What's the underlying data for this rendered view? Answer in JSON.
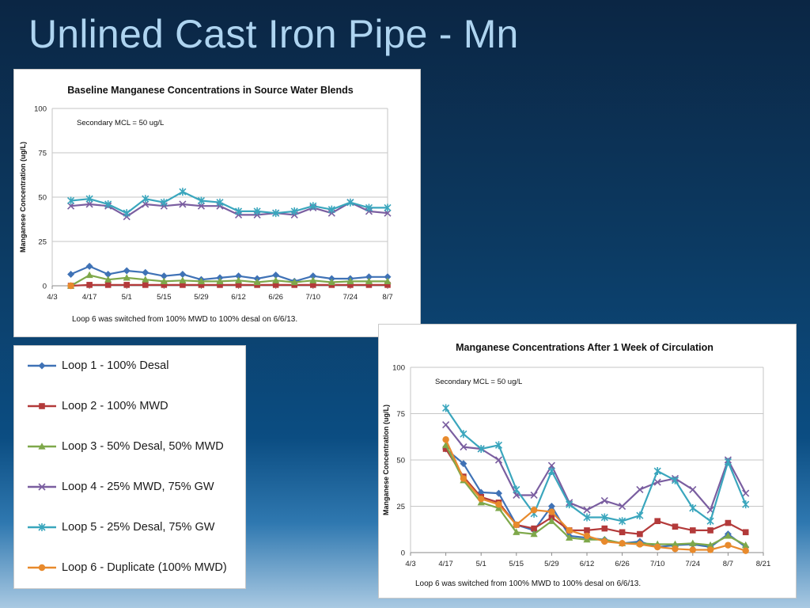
{
  "slide": {
    "title": "Unlined Cast Iron Pipe - Mn"
  },
  "legend": [
    {
      "label": "Loop 1 - 100% Desal",
      "color": "#3f72b6",
      "marker": "diamond"
    },
    {
      "label": "Loop 2 - 100% MWD",
      "color": "#b33a3a",
      "marker": "square"
    },
    {
      "label": "Loop 3 - 50% Desal, 50% MWD",
      "color": "#7ea84a",
      "marker": "triangle"
    },
    {
      "label": "Loop 4 - 25% MWD, 75% GW",
      "color": "#7a5ea0",
      "marker": "x"
    },
    {
      "label": "Loop 5 - 25% Desal, 75% GW",
      "color": "#3aa6bd",
      "marker": "star"
    },
    {
      "label": "Loop 6 - Duplicate (100% MWD)",
      "color": "#e88a2c",
      "marker": "circle"
    }
  ],
  "chart_data": [
    {
      "type": "line",
      "title": "Baseline Manganese Concentrations in Source Water Blends",
      "ylabel": "Manganese Concentration (ug/L)",
      "xlabel": "",
      "ylim": [
        0,
        100
      ],
      "yticks": [
        "0",
        "25",
        "50",
        "75",
        "100"
      ],
      "xlim": [
        "2013-04-03",
        "2013-08-07"
      ],
      "xticks": [
        "4/3",
        "4/17",
        "5/1",
        "5/15",
        "5/29",
        "6/12",
        "6/26",
        "7/10",
        "7/24",
        "8/7"
      ],
      "grid": true,
      "annotation": "Secondary MCL = 50 ug/L",
      "footnote": "Loop 6 was switched from 100% MWD to 100% desal on 6/6/13.",
      "x": [
        "2013-04-10",
        "2013-04-17",
        "2013-04-24",
        "2013-05-01",
        "2013-05-08",
        "2013-05-15",
        "2013-05-22",
        "2013-05-29",
        "2013-06-05",
        "2013-06-12",
        "2013-06-19",
        "2013-06-26",
        "2013-07-03",
        "2013-07-10",
        "2013-07-17",
        "2013-07-24",
        "2013-07-31",
        "2013-08-07"
      ],
      "series": [
        {
          "name": "Loop 1 - 100% Desal",
          "color": "#3f72b6",
          "marker": "diamond",
          "values": [
            6.5,
            11,
            6.5,
            8.5,
            7.5,
            5.5,
            6.5,
            3.5,
            4.5,
            5.5,
            4,
            6,
            2.5,
            5.5,
            4,
            4,
            5,
            5
          ]
        },
        {
          "name": "Loop 2 - 100% MWD",
          "color": "#b33a3a",
          "marker": "square",
          "values": [
            0,
            0.5,
            0.5,
            0.5,
            0.5,
            0.5,
            0.5,
            0.5,
            0.5,
            0.5,
            0.5,
            0.5,
            0.5,
            0.5,
            0.5,
            0.5,
            0.5,
            0.5
          ]
        },
        {
          "name": "Loop 3 - 50% Desal, 50% MWD",
          "color": "#7ea84a",
          "marker": "triangle",
          "values": [
            0,
            6,
            3.5,
            4.5,
            3.5,
            2.5,
            3,
            2.5,
            2.5,
            3,
            2,
            3,
            2,
            3,
            2,
            2.5,
            2.5,
            2.5
          ]
        },
        {
          "name": "Loop 4 - 25% MWD, 75% GW",
          "color": "#7a5ea0",
          "marker": "x",
          "values": [
            45,
            46,
            45,
            39,
            46,
            45,
            46,
            45,
            45,
            40,
            40,
            41,
            40,
            44,
            41,
            47,
            42,
            41
          ]
        },
        {
          "name": "Loop 5 - 25% Desal, 75% GW",
          "color": "#3aa6bd",
          "marker": "star",
          "values": [
            48,
            49,
            46,
            41,
            49,
            47,
            53,
            48,
            47,
            42,
            42,
            41,
            42,
            45,
            43,
            47,
            44,
            44
          ]
        },
        {
          "name": "Loop 6 - Duplicate (100% MWD)",
          "color": "#e88a2c",
          "marker": "circle",
          "values": [
            0,
            null,
            null,
            null,
            null,
            null,
            null,
            null,
            null,
            null,
            null,
            null,
            null,
            null,
            null,
            null,
            null,
            null
          ]
        }
      ]
    },
    {
      "type": "line",
      "title": "Manganese Concentrations After 1 Week of Circulation",
      "ylabel": "Manganese Concentration (ug/L)",
      "xlabel": "",
      "ylim": [
        0,
        100
      ],
      "yticks": [
        "0",
        "25",
        "50",
        "75",
        "100"
      ],
      "xlim": [
        "2013-04-03",
        "2013-08-21"
      ],
      "xticks": [
        "4/3",
        "4/17",
        "5/1",
        "5/15",
        "5/29",
        "6/12",
        "6/26",
        "7/10",
        "7/24",
        "8/7",
        "8/21"
      ],
      "grid": true,
      "annotation": "Secondary MCL = 50 ug/L",
      "footnote": "Loop 6 was switched from 100% MWD to 100% desal on 6/6/13.",
      "x": [
        "2013-04-17",
        "2013-04-24",
        "2013-05-01",
        "2013-05-08",
        "2013-05-15",
        "2013-05-22",
        "2013-05-29",
        "2013-06-05",
        "2013-06-12",
        "2013-06-19",
        "2013-06-26",
        "2013-07-03",
        "2013-07-10",
        "2013-07-17",
        "2013-07-24",
        "2013-07-31",
        "2013-08-07",
        "2013-08-14"
      ],
      "series": [
        {
          "name": "Loop 1 - 100% Desal",
          "color": "#3f72b6",
          "marker": "diamond",
          "values": [
            56,
            48,
            32.5,
            32,
            15,
            12,
            25,
            9,
            8,
            7,
            5,
            6,
            3,
            4,
            4.5,
            3,
            10,
            3
          ]
        },
        {
          "name": "Loop 2 - 100% MWD",
          "color": "#b33a3a",
          "marker": "square",
          "values": [
            56,
            41,
            30,
            27,
            15,
            13,
            19,
            12,
            12,
            13,
            11,
            10,
            17,
            14,
            12,
            12,
            16,
            11
          ]
        },
        {
          "name": "Loop 3 - 50% Desal, 50% MWD",
          "color": "#7ea84a",
          "marker": "triangle",
          "values": [
            58,
            39,
            27,
            24,
            11,
            10,
            17,
            8,
            7,
            7,
            5,
            5,
            4.5,
            4.5,
            5,
            4,
            9,
            4
          ]
        },
        {
          "name": "Loop 4 - 25% MWD, 75% GW",
          "color": "#7a5ea0",
          "marker": "x",
          "values": [
            69,
            57,
            56,
            50,
            31,
            31,
            47,
            27,
            23,
            28,
            25,
            34,
            38,
            40,
            34,
            23,
            50,
            32
          ]
        },
        {
          "name": "Loop 5 - 25% Desal, 75% GW",
          "color": "#3aa6bd",
          "marker": "star",
          "values": [
            78,
            64,
            56,
            58,
            34,
            21,
            44,
            26,
            19,
            19,
            17,
            20,
            44,
            39,
            24,
            17,
            49,
            26
          ]
        },
        {
          "name": "Loop 6 - Duplicate (100% MWD)",
          "color": "#e88a2c",
          "marker": "circle",
          "values": [
            61,
            40,
            29,
            26,
            15,
            23,
            22,
            12,
            9,
            6,
            5,
            4.5,
            3,
            2,
            1.5,
            1.5,
            4,
            1
          ]
        }
      ]
    }
  ]
}
